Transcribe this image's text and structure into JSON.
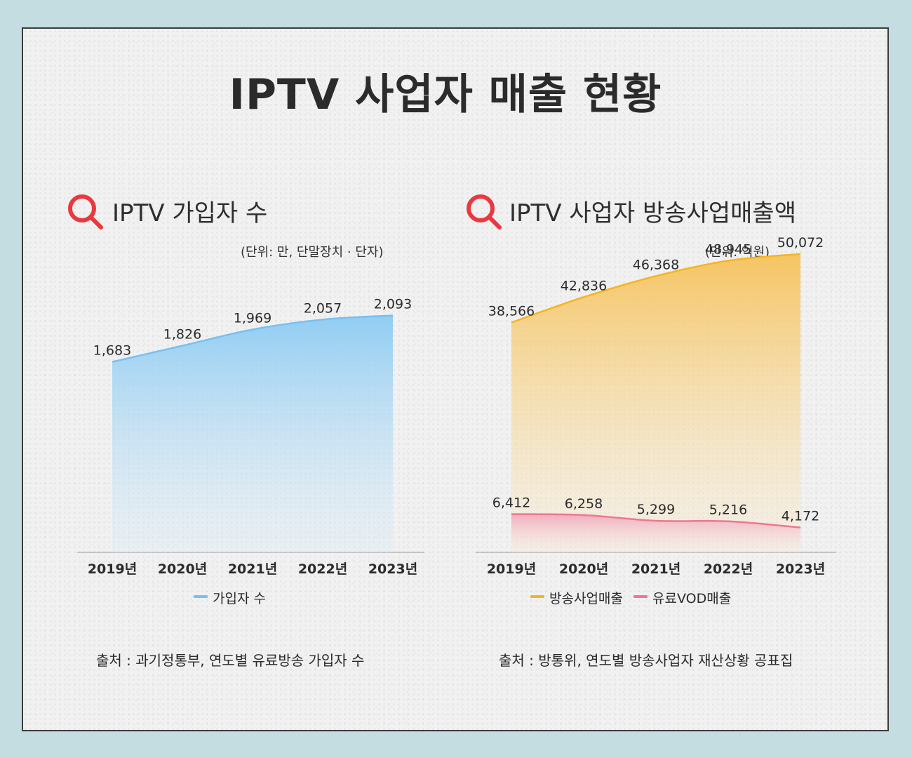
{
  "title": "IPTV 사업자 매출 현황",
  "colors": {
    "subscribers": "#79bff0",
    "broadcast": "#f6b420",
    "vod": "#ec7892",
    "icon": "#e8393f"
  },
  "left": {
    "title": "IPTV 가입자 수",
    "unit": "(단위: 만, 단말장치 · 단자)",
    "source": "출처 : 과기정통부, 연도별 유료방송 가입자 수"
  },
  "right": {
    "title": "IPTV 사업자 방송사업매출액",
    "unit": "(단위: 억원)",
    "source": "출처 : 방통위, 연도별 방송사업자 재산상황 공표집"
  },
  "chart_data": [
    {
      "type": "area",
      "title": "IPTV 가입자 수",
      "categories": [
        "2019년",
        "2020년",
        "2021년",
        "2022년",
        "2023년"
      ],
      "series": [
        {
          "name": "가입자 수",
          "values": [
            1683,
            1826,
            1969,
            2057,
            2093
          ],
          "labels": [
            "1,683",
            "1,826",
            "1,969",
            "2,057",
            "2,093"
          ]
        }
      ],
      "ylim": [
        0,
        2400
      ],
      "xlabel": "",
      "ylabel": "",
      "grid": false,
      "legend": "bottom"
    },
    {
      "type": "area",
      "title": "IPTV 사업자 방송사업매출액",
      "categories": [
        "2019년",
        "2020년",
        "2021년",
        "2022년",
        "2023년"
      ],
      "series": [
        {
          "name": "방송사업매출",
          "values": [
            38566,
            42836,
            46368,
            48945,
            50072
          ],
          "labels": [
            "38,566",
            "42,836",
            "46,368",
            "48,945",
            "50,072"
          ]
        },
        {
          "name": "유료VOD매출",
          "values": [
            6412,
            6258,
            5299,
            5216,
            4172
          ],
          "labels": [
            "6,412",
            "6,258",
            "5,299",
            "5,216",
            "4,172"
          ]
        }
      ],
      "ylim": [
        0,
        55000
      ],
      "xlabel": "",
      "ylabel": "",
      "grid": false,
      "legend": "bottom"
    }
  ]
}
